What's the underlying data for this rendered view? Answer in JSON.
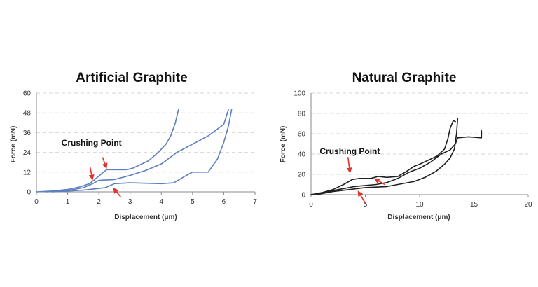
{
  "chart_data": [
    {
      "type": "line",
      "title": "Artificial Graphite",
      "xlabel": "Displacement (μm)",
      "ylabel": "Force (mN)",
      "xlim": [
        0,
        7
      ],
      "ylim": [
        0,
        60
      ],
      "xticks": [
        0,
        1,
        2,
        3,
        4,
        5,
        6,
        7
      ],
      "yticks": [
        0,
        12,
        24,
        36,
        48,
        60
      ],
      "grid": "horizontal-dashed",
      "color": "#5b7fc0",
      "annotation": "Crushing Point",
      "annotation_at": [
        0.8,
        28
      ],
      "arrows": [
        {
          "from": [
            1.72,
            15
          ],
          "to": [
            1.8,
            7
          ]
        },
        {
          "from": [
            2.12,
            21
          ],
          "to": [
            2.25,
            14
          ]
        },
        {
          "from": [
            2.7,
            -3
          ],
          "to": [
            2.45,
            2.5
          ]
        }
      ],
      "series": [
        {
          "points": [
            [
              0,
              0
            ],
            [
              0.5,
              0.5
            ],
            [
              1.0,
              1.5
            ],
            [
              1.4,
              3
            ],
            [
              1.7,
              5
            ],
            [
              1.9,
              8
            ],
            [
              2.15,
              12
            ],
            [
              2.25,
              13.5
            ],
            [
              2.9,
              13.5
            ],
            [
              3.1,
              14.5
            ],
            [
              3.6,
              19
            ],
            [
              3.9,
              24
            ],
            [
              4.15,
              29
            ],
            [
              4.3,
              34
            ],
            [
              4.45,
              42
            ],
            [
              4.55,
              50
            ]
          ]
        },
        {
          "points": [
            [
              0.3,
              0
            ],
            [
              1.0,
              0.8
            ],
            [
              1.5,
              2.5
            ],
            [
              1.8,
              5
            ],
            [
              2.0,
              7
            ],
            [
              2.5,
              7.5
            ],
            [
              3.0,
              10
            ],
            [
              3.5,
              13
            ],
            [
              4.0,
              17
            ],
            [
              4.5,
              24
            ],
            [
              5.0,
              29
            ],
            [
              5.5,
              34
            ],
            [
              6.0,
              41
            ],
            [
              6.15,
              50
            ]
          ]
        },
        {
          "points": [
            [
              0.5,
              0
            ],
            [
              1.5,
              1
            ],
            [
              2.2,
              2.5
            ],
            [
              2.5,
              5
            ],
            [
              3.0,
              5.5
            ],
            [
              4.0,
              5
            ],
            [
              4.4,
              5.5
            ],
            [
              4.8,
              10
            ],
            [
              5.0,
              12
            ],
            [
              5.5,
              12
            ],
            [
              5.8,
              20
            ],
            [
              6.0,
              30
            ],
            [
              6.15,
              40
            ],
            [
              6.25,
              50
            ]
          ]
        }
      ]
    },
    {
      "type": "line",
      "title": "Natural Graphite",
      "xlabel": "Displacement (μm)",
      "ylabel": "Force (mN)",
      "xlim": [
        0,
        20
      ],
      "ylim": [
        0,
        100
      ],
      "xticks": [
        0,
        5,
        10,
        15,
        20
      ],
      "yticks": [
        0,
        20,
        40,
        60,
        80,
        100
      ],
      "grid": "horizontal-dashed",
      "color": "#1f1f1f",
      "annotation": "Crushing Point",
      "annotation_at": [
        0.8,
        40
      ],
      "arrows": [
        {
          "from": [
            3.4,
            37
          ],
          "to": [
            3.6,
            21
          ]
        },
        {
          "from": [
            5.1,
            -10
          ],
          "to": [
            4.3,
            4
          ]
        },
        {
          "from": [
            6.8,
            10
          ],
          "to": [
            5.8,
            16
          ]
        }
      ],
      "series": [
        {
          "points": [
            [
              0,
              0
            ],
            [
              1,
              2
            ],
            [
              2,
              5
            ],
            [
              3,
              10
            ],
            [
              3.8,
              15
            ],
            [
              4.5,
              16
            ],
            [
              5.5,
              16
            ],
            [
              6.2,
              18
            ],
            [
              7,
              17
            ],
            [
              8,
              18
            ],
            [
              8.8,
              23
            ],
            [
              9.5,
              28
            ],
            [
              10,
              30
            ],
            [
              11,
              35
            ],
            [
              11.6,
              38
            ],
            [
              12.3,
              45
            ],
            [
              12.6,
              55
            ],
            [
              12.8,
              65
            ],
            [
              13.1,
              73
            ],
            [
              13.3,
              72
            ]
          ]
        },
        {
          "points": [
            [
              0,
              0
            ],
            [
              1,
              2
            ],
            [
              2,
              4
            ],
            [
              3,
              6
            ],
            [
              4,
              8
            ],
            [
              5,
              9
            ],
            [
              6,
              10
            ],
            [
              7,
              12
            ],
            [
              8,
              16
            ],
            [
              9,
              22
            ],
            [
              10,
              26
            ],
            [
              11,
              32
            ],
            [
              12,
              40
            ],
            [
              12.8,
              44
            ],
            [
              13.3,
              50
            ],
            [
              13.5,
              56
            ],
            [
              14.5,
              57
            ],
            [
              15.7,
              56
            ],
            [
              15.7,
              63
            ]
          ]
        },
        {
          "points": [
            [
              0.5,
              0
            ],
            [
              2,
              3
            ],
            [
              3.5,
              5
            ],
            [
              5,
              7
            ],
            [
              7,
              8
            ],
            [
              8,
              10
            ],
            [
              9.5,
              13
            ],
            [
              10.5,
              17
            ],
            [
              11.5,
              23
            ],
            [
              12.3,
              30
            ],
            [
              12.8,
              36
            ],
            [
              13.2,
              45
            ],
            [
              13.4,
              60
            ],
            [
              13.5,
              75
            ]
          ]
        }
      ]
    }
  ]
}
